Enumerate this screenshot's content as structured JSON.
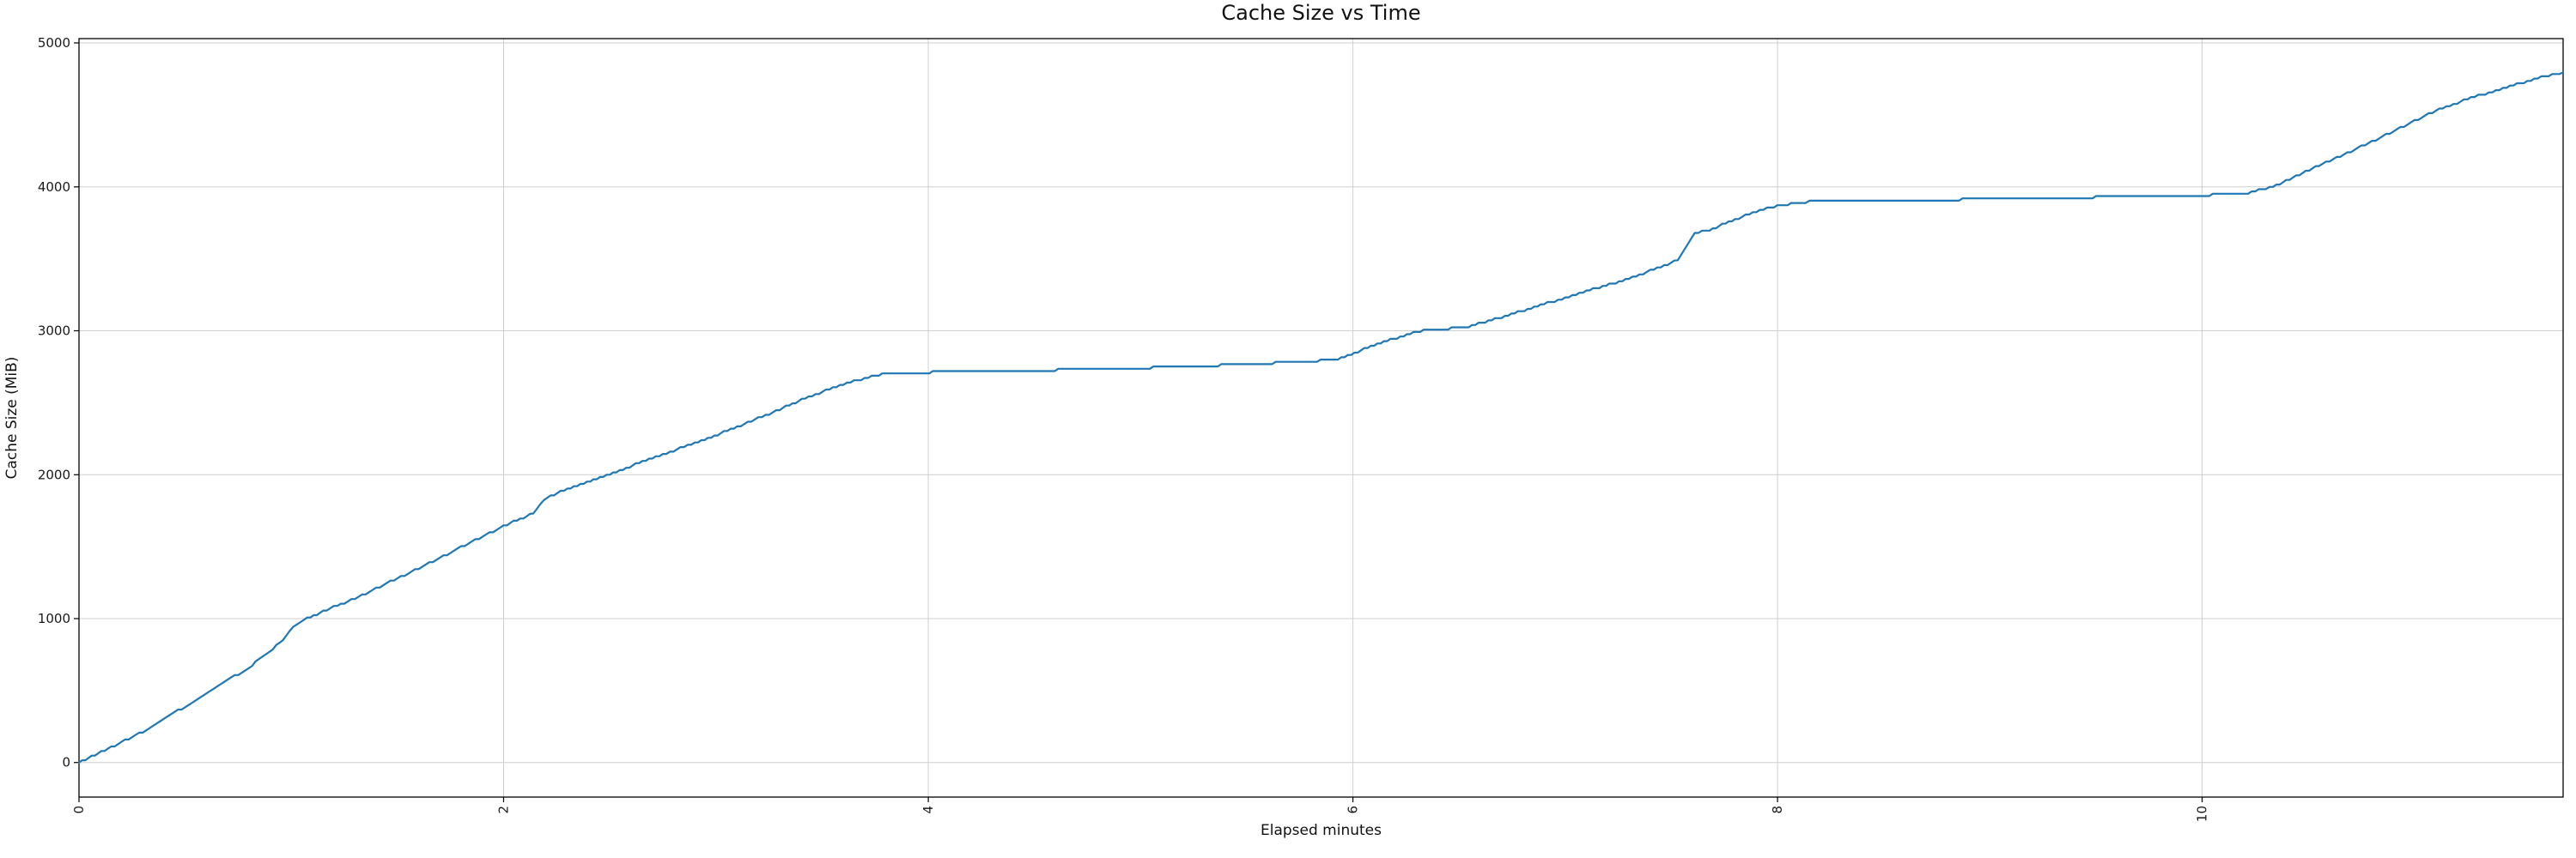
{
  "chart_data": {
    "type": "line",
    "title": "Cache Size vs Time",
    "xlabel": "Elapsed minutes",
    "ylabel": "Cache Size (MiB)",
    "xlim": [
      0,
      11.7
    ],
    "ylim": [
      -240,
      5030
    ],
    "xticks": [
      0,
      2,
      4,
      6,
      8,
      10
    ],
    "yticks": [
      0,
      1000,
      2000,
      3000,
      4000,
      5000
    ],
    "grid": true,
    "legend": "none",
    "line_color": "#1f77b4",
    "grid_color": "#cfcfcf",
    "spine_color": "#000000",
    "series": [
      {
        "name": "cache_size_mib",
        "points": [
          [
            0.0,
            0
          ],
          [
            0.06,
            40
          ],
          [
            0.12,
            85
          ],
          [
            0.2,
            140
          ],
          [
            0.3,
            215
          ],
          [
            0.4,
            300
          ],
          [
            0.5,
            390
          ],
          [
            0.6,
            480
          ],
          [
            0.7,
            570
          ],
          [
            0.8,
            660
          ],
          [
            0.88,
            750
          ],
          [
            0.96,
            850
          ],
          [
            1.01,
            950
          ],
          [
            1.06,
            990
          ],
          [
            1.15,
            1050
          ],
          [
            1.3,
            1140
          ],
          [
            1.45,
            1245
          ],
          [
            1.6,
            1350
          ],
          [
            1.75,
            1460
          ],
          [
            1.9,
            1570
          ],
          [
            2.0,
            1645
          ],
          [
            2.14,
            1730
          ],
          [
            2.19,
            1830
          ],
          [
            2.3,
            1900
          ],
          [
            2.5,
            2005
          ],
          [
            2.7,
            2115
          ],
          [
            2.9,
            2220
          ],
          [
            3.1,
            2330
          ],
          [
            3.3,
            2455
          ],
          [
            3.42,
            2530
          ],
          [
            3.6,
            2630
          ],
          [
            3.8,
            2705
          ],
          [
            4.1,
            2715
          ],
          [
            4.5,
            2725
          ],
          [
            4.9,
            2737
          ],
          [
            5.3,
            2755
          ],
          [
            5.7,
            2780
          ],
          [
            5.93,
            2800
          ],
          [
            6.1,
            2900
          ],
          [
            6.3,
            2995
          ],
          [
            6.4,
            3010
          ],
          [
            6.53,
            3022
          ],
          [
            6.7,
            3095
          ],
          [
            6.9,
            3185
          ],
          [
            7.1,
            3275
          ],
          [
            7.3,
            3360
          ],
          [
            7.45,
            3445
          ],
          [
            7.53,
            3490
          ],
          [
            7.61,
            3680
          ],
          [
            7.68,
            3700
          ],
          [
            7.8,
            3775
          ],
          [
            7.95,
            3850
          ],
          [
            8.08,
            3888
          ],
          [
            8.15,
            3897
          ],
          [
            8.5,
            3904
          ],
          [
            9.0,
            3915
          ],
          [
            9.5,
            3928
          ],
          [
            10.0,
            3942
          ],
          [
            10.2,
            3950
          ],
          [
            10.35,
            4010
          ],
          [
            10.55,
            4150
          ],
          [
            10.75,
            4280
          ],
          [
            10.95,
            4420
          ],
          [
            11.1,
            4530
          ],
          [
            11.25,
            4610
          ],
          [
            11.45,
            4700
          ],
          [
            11.58,
            4755
          ],
          [
            11.7,
            4795
          ]
        ]
      }
    ]
  }
}
